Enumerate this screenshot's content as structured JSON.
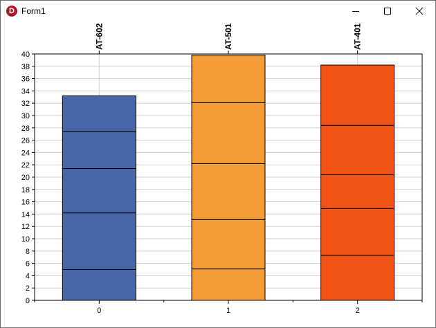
{
  "window": {
    "title": "Form1",
    "app_icon_letter": "D",
    "controls": [
      "minimize",
      "maximize",
      "close"
    ]
  },
  "chart_data": {
    "type": "bar",
    "stacked": true,
    "categories": [
      "0",
      "1",
      "2"
    ],
    "top_labels": [
      "AT-602",
      "AT-501",
      "AT-401"
    ],
    "stack_boundaries": [
      [
        5,
        14.2,
        21.4,
        27.4,
        33.2
      ],
      [
        5.1,
        13.1,
        22.2,
        32.1,
        39.8
      ],
      [
        7.3,
        14.9,
        20.4,
        28.4,
        38.2
      ]
    ],
    "colors": [
      "#4667a6",
      "#f49d37",
      "#f15316"
    ],
    "ylim": [
      0,
      40
    ],
    "yticks": [
      "0",
      "2",
      "4",
      "6",
      "8",
      "10",
      "12",
      "14",
      "16",
      "18",
      "20",
      "22",
      "24",
      "26",
      "28",
      "30",
      "32",
      "34",
      "36",
      "38",
      "40"
    ],
    "grid": true
  }
}
